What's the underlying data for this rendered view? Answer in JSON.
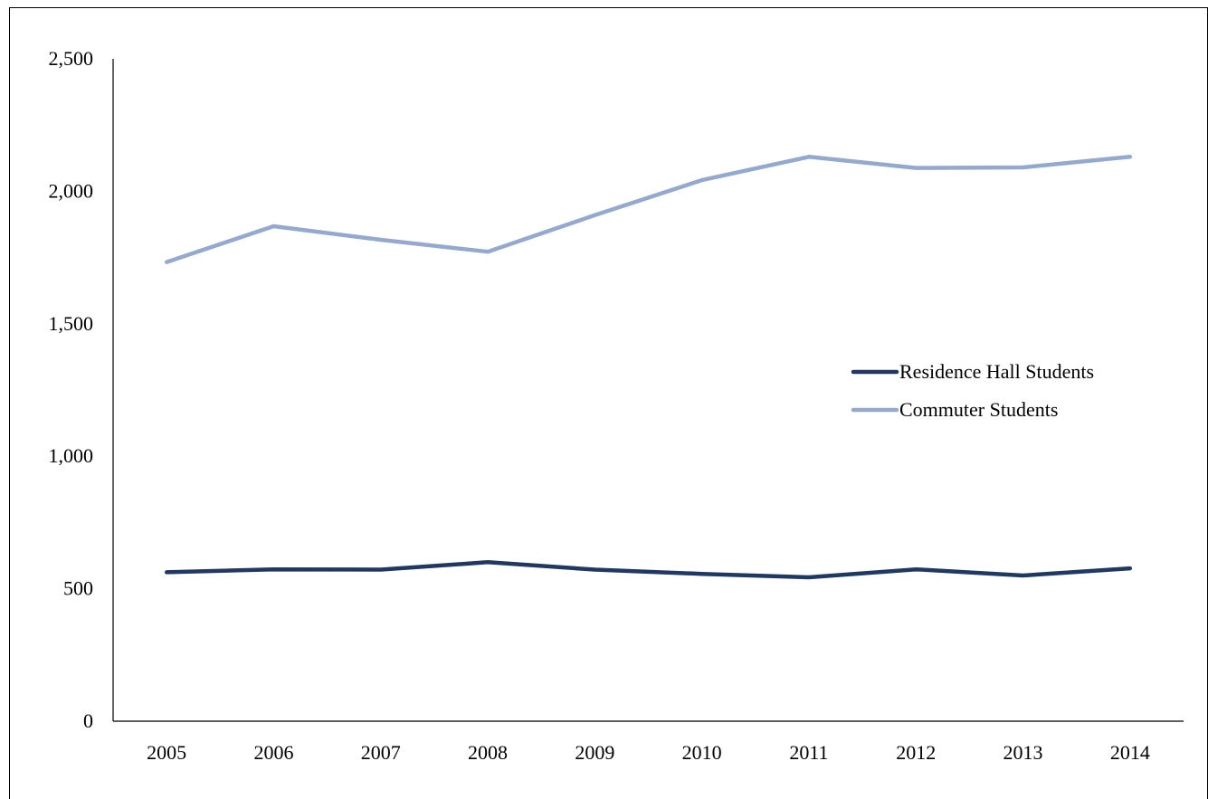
{
  "chart_data": {
    "type": "line",
    "title": "",
    "xlabel": "",
    "ylabel": "",
    "categories": [
      "2005",
      "2006",
      "2007",
      "2008",
      "2009",
      "2010",
      "2011",
      "2012",
      "2013",
      "2014"
    ],
    "ylim": [
      0,
      2500
    ],
    "yticks": [
      "0",
      "500",
      "1,000",
      "1,500",
      "2,000",
      "2,500"
    ],
    "ytick_values": [
      0,
      500,
      1000,
      1500,
      2000,
      2500
    ],
    "grid": false,
    "legend_position": "right",
    "series": [
      {
        "name": "Residence Hall Students",
        "color": "#1f3864",
        "values": [
          562,
          573,
          572,
          600,
          572,
          556,
          543,
          573,
          550,
          577
        ]
      },
      {
        "name": "Commuter Students",
        "color": "#95a9d0",
        "values": [
          1733,
          1868,
          1817,
          1772,
          1910,
          2042,
          2130,
          2088,
          2090,
          2130
        ]
      }
    ]
  }
}
